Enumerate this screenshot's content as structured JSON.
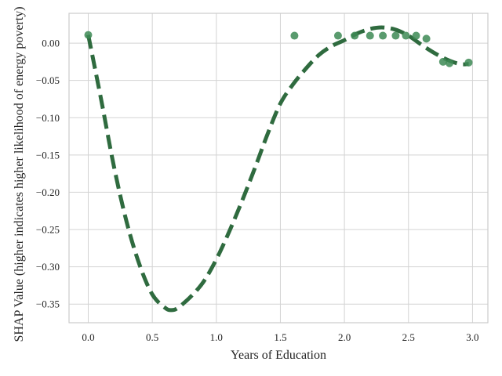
{
  "chart_data": {
    "type": "scatter",
    "title": "",
    "xlabel": "Years of Education",
    "ylabel": "SHAP Value (higher indicates higher likelihood of energy poverty)",
    "xlim": [
      -0.15,
      3.12
    ],
    "ylim": [
      -0.375,
      0.04
    ],
    "x_ticks": [
      0.0,
      0.5,
      1.0,
      1.5,
      2.0,
      2.5,
      3.0
    ],
    "x_tick_labels": [
      "0.0",
      "0.5",
      "1.0",
      "1.5",
      "2.0",
      "2.5",
      "3.0"
    ],
    "y_ticks": [
      0.0,
      -0.05,
      -0.1,
      -0.15,
      -0.2,
      -0.25,
      -0.3,
      -0.35
    ],
    "y_tick_labels": [
      "0.00",
      "−0.05",
      "−0.10",
      "−0.15",
      "−0.20",
      "−0.25",
      "−0.30",
      "−0.35"
    ],
    "grid": true,
    "colors": {
      "points": "#3d8a55",
      "trend": "#2f6b3f",
      "grid": "#d3d3d3",
      "axis": "#cccccc"
    },
    "series": [
      {
        "kind": "points",
        "x": [
          0.0,
          1.61,
          1.95,
          2.08,
          2.2,
          2.3,
          2.4,
          2.48,
          2.56,
          2.64,
          2.77,
          2.82,
          2.97
        ],
        "y": [
          0.011,
          0.01,
          0.01,
          0.01,
          0.01,
          0.01,
          0.01,
          0.01,
          0.01,
          0.006,
          -0.025,
          -0.027,
          -0.026
        ]
      },
      {
        "kind": "trend",
        "style": "dashed",
        "x": [
          0.0,
          0.1,
          0.2,
          0.3,
          0.4,
          0.5,
          0.6,
          0.65,
          0.7,
          0.8,
          0.9,
          1.0,
          1.1,
          1.2,
          1.3,
          1.4,
          1.5,
          1.6,
          1.7,
          1.8,
          1.9,
          2.0,
          2.1,
          2.2,
          2.3,
          2.4,
          2.5,
          2.6,
          2.7,
          2.8,
          2.9,
          2.97
        ],
        "y": [
          0.011,
          -0.075,
          -0.165,
          -0.24,
          -0.297,
          -0.337,
          -0.355,
          -0.358,
          -0.355,
          -0.34,
          -0.32,
          -0.29,
          -0.253,
          -0.212,
          -0.168,
          -0.122,
          -0.081,
          -0.055,
          -0.034,
          -0.016,
          -0.004,
          0.004,
          0.013,
          0.019,
          0.021,
          0.018,
          0.01,
          -0.002,
          -0.013,
          -0.022,
          -0.028,
          -0.028
        ]
      }
    ]
  }
}
